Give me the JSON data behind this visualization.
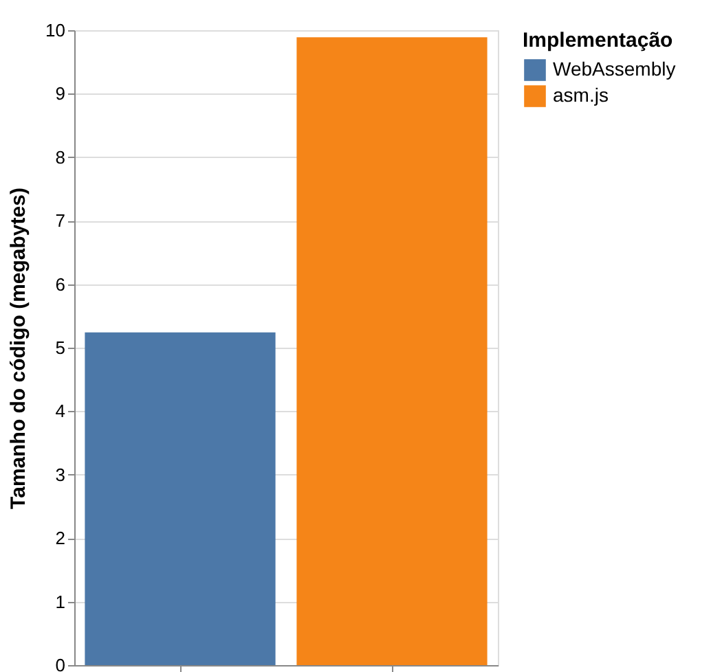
{
  "chart_data": {
    "type": "bar",
    "ylabel": "Tamanho do código (megabytes)",
    "legend_title": "Implementação",
    "categories": [
      null,
      null
    ],
    "series": [
      {
        "name": "WebAssembly",
        "color": "#4c78a8",
        "values": [
          5.24,
          null
        ]
      },
      {
        "name": "asm.js",
        "color": "#f58518",
        "values": [
          null,
          9.89
        ]
      }
    ],
    "ylim": [
      0,
      10
    ],
    "yticks": [
      0,
      1,
      2,
      3,
      4,
      5,
      6,
      7,
      8,
      9,
      10
    ],
    "grid": "y",
    "legend": "top right",
    "tick_labels": "y"
  }
}
